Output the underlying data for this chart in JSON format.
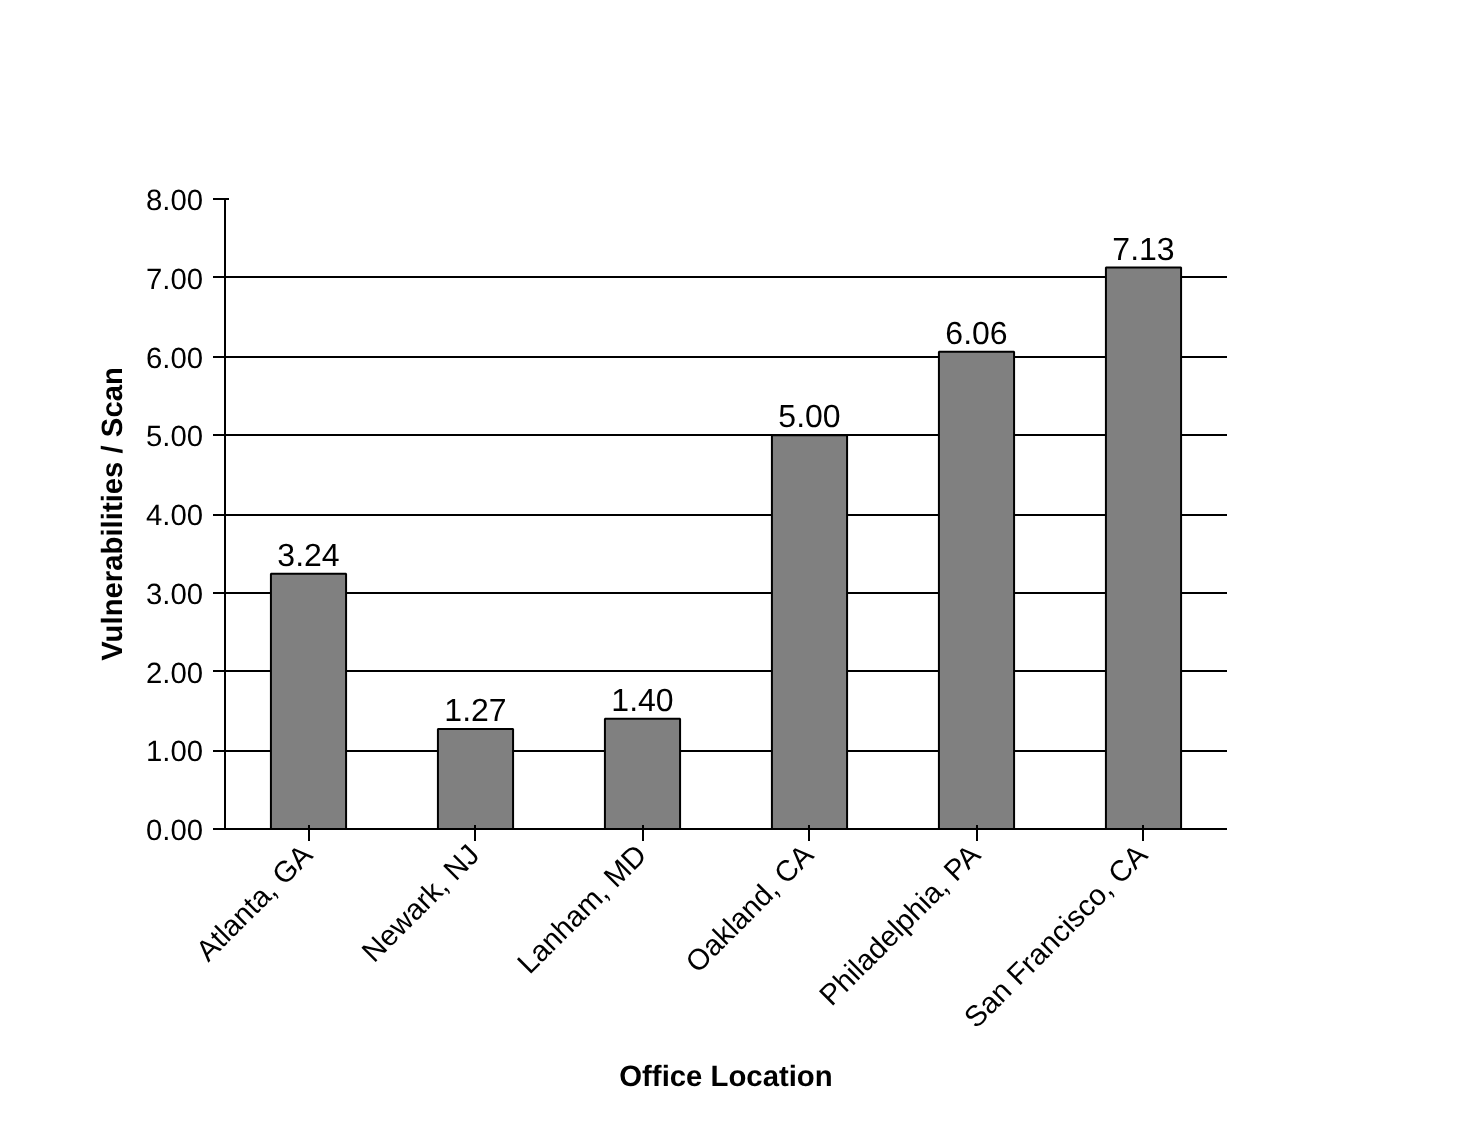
{
  "chart_data": {
    "type": "bar",
    "xlabel": "Office Location",
    "ylabel": "Vulnerabilities / Scan",
    "categories": [
      "Atlanta, GA",
      "Newark, NJ",
      "Lanham, MD",
      "Oakland, CA",
      "Philadelphia, PA",
      "San Francisco, CA"
    ],
    "values": [
      3.24,
      1.27,
      1.4,
      5.0,
      6.06,
      7.13
    ],
    "value_labels": [
      "3.24",
      "1.27",
      "1.40",
      "5.00",
      "6.06",
      "7.13"
    ],
    "color": "#808080",
    "ylim": [
      0,
      8
    ],
    "yticks": [
      {
        "value": 0,
        "label": "0.00"
      },
      {
        "value": 1,
        "label": "1.00"
      },
      {
        "value": 2,
        "label": "2.00"
      },
      {
        "value": 3,
        "label": "3.00"
      },
      {
        "value": 4,
        "label": "4.00"
      },
      {
        "value": 5,
        "label": "5.00"
      },
      {
        "value": 6,
        "label": "6.00"
      },
      {
        "value": 7,
        "label": "7.00"
      },
      {
        "value": 8,
        "label": "8.00"
      }
    ],
    "grid": "y"
  }
}
